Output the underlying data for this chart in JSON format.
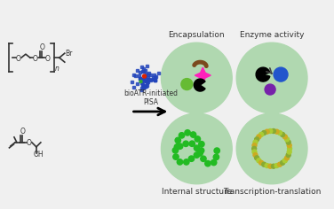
{
  "bg_color": "#f0f0f0",
  "encapsulation_label": "Encapsulation",
  "enzyme_activity_label": "Enzyme activity",
  "internal_structure_label": "Internal structure",
  "transcription_label": "Transcription-translation",
  "bioatr_label": "bioATR-initiated\nPISA",
  "text_color": "#333333",
  "lc": "#333333",
  "ring_outer_green": "#b0d8b0",
  "ring_pink_outer": "#dd88dd",
  "ring_white": "#f5eef5",
  "ring_pink_inner": "#dd88dd",
  "ring_inner_green": "#b0d8b0",
  "ring_center": "#ffffff",
  "vesicle_radii": [
    1.0,
    0.91,
    0.83,
    0.76,
    0.68,
    0.6
  ],
  "fig_w": 3.76,
  "fig_h": 2.36,
  "dpi": 100
}
